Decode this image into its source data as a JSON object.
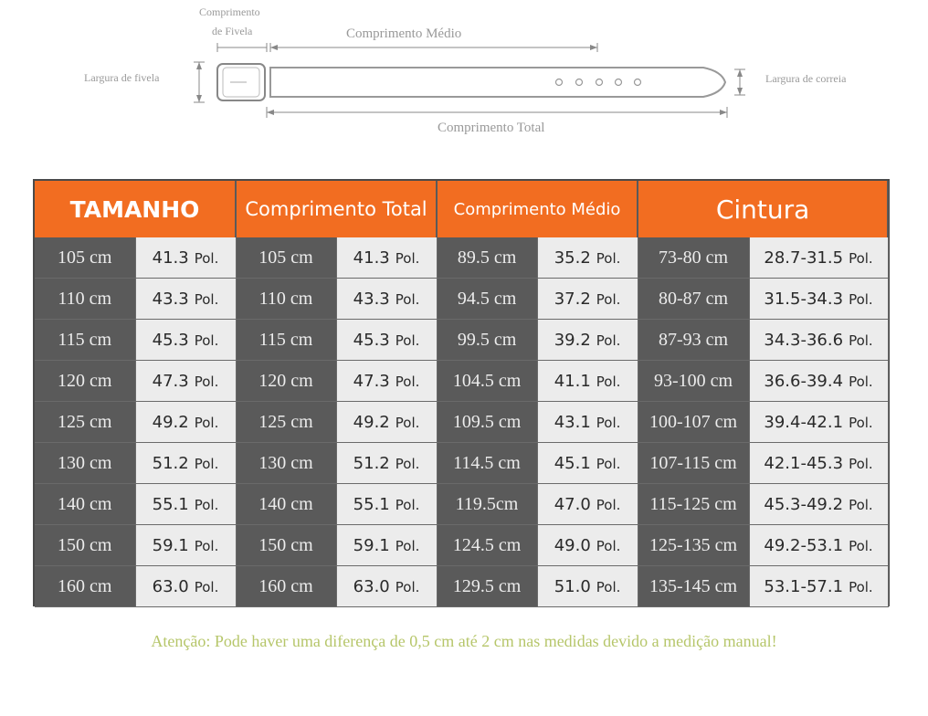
{
  "diagram": {
    "buckle_length_label_1": "Comprimento",
    "buckle_length_label_2": "de Fivela",
    "medium_length_label": "Comprimento Médio",
    "buckle_width_label": "Largura de fivela",
    "strap_width_label": "Largura de correia",
    "total_length_label": "Comprimento Total"
  },
  "table": {
    "headers": [
      "TAMANHO",
      "Comprimento Total",
      "Comprimento Médio",
      "Cintura"
    ],
    "unit_label": "Pol.",
    "rows": [
      {
        "size_cm": "105 cm",
        "size_pol": "41.3",
        "total_cm": "105 cm",
        "total_pol": "41.3",
        "medium_cm": "89.5 cm",
        "medium_pol": "35.2",
        "waist_cm": "73-80 cm",
        "waist_pol": "28.7-31.5"
      },
      {
        "size_cm": "110 cm",
        "size_pol": "43.3",
        "total_cm": "110 cm",
        "total_pol": "43.3",
        "medium_cm": "94.5 cm",
        "medium_pol": "37.2",
        "waist_cm": "80-87 cm",
        "waist_pol": "31.5-34.3"
      },
      {
        "size_cm": "115 cm",
        "size_pol": "45.3",
        "total_cm": "115 cm",
        "total_pol": "45.3",
        "medium_cm": "99.5 cm",
        "medium_pol": "39.2",
        "waist_cm": "87-93 cm",
        "waist_pol": "34.3-36.6"
      },
      {
        "size_cm": "120 cm",
        "size_pol": "47.3",
        "total_cm": "120 cm",
        "total_pol": "47.3",
        "medium_cm": "104.5 cm",
        "medium_pol": "41.1",
        "waist_cm": "93-100 cm",
        "waist_pol": "36.6-39.4"
      },
      {
        "size_cm": "125 cm",
        "size_pol": "49.2",
        "total_cm": "125 cm",
        "total_pol": "49.2",
        "medium_cm": "109.5 cm",
        "medium_pol": "43.1",
        "waist_cm": "100-107 cm",
        "waist_pol": "39.4-42.1"
      },
      {
        "size_cm": "130 cm",
        "size_pol": "51.2",
        "total_cm": "130 cm",
        "total_pol": "51.2",
        "medium_cm": "114.5 cm",
        "medium_pol": "45.1",
        "waist_cm": "107-115 cm",
        "waist_pol": "42.1-45.3"
      },
      {
        "size_cm": "140 cm",
        "size_pol": "55.1",
        "total_cm": "140 cm",
        "total_pol": "55.1",
        "medium_cm": "119.5cm",
        "medium_pol": "47.0",
        "waist_cm": "115-125 cm",
        "waist_pol": "45.3-49.2"
      },
      {
        "size_cm": "150 cm",
        "size_pol": "59.1",
        "total_cm": "150 cm",
        "total_pol": "59.1",
        "medium_cm": "124.5 cm",
        "medium_pol": "49.0",
        "waist_cm": "125-135 cm",
        "waist_pol": "49.2-53.1"
      },
      {
        "size_cm": "160 cm",
        "size_pol": "63.0",
        "total_cm": "160 cm",
        "total_pol": "63.0",
        "medium_cm": "129.5 cm",
        "medium_pol": "51.0",
        "waist_cm": "135-145 cm",
        "waist_pol": "53.1-57.1"
      }
    ]
  },
  "note": "Atenção: Pode haver uma diferença de 0,5 cm até 2 cm  nas medidas devido a medição manual!",
  "colors": {
    "header": "#f26d21",
    "dark_cell": "#5a5a5a",
    "light_cell": "#ececec",
    "note": "#b6c66a"
  }
}
